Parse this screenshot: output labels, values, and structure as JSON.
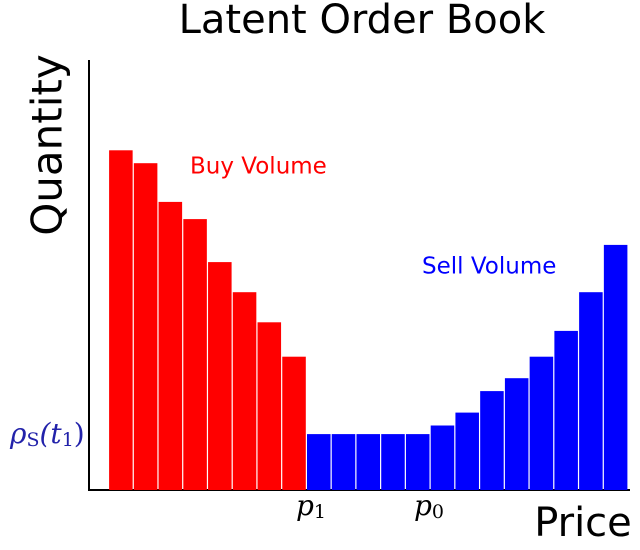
{
  "chart_data": {
    "type": "bar",
    "title": "Latent Order Book",
    "x_label": "Price",
    "y_label": "Quantity",
    "categories": [
      null,
      null,
      null,
      null,
      null,
      null,
      null,
      null,
      null,
      null,
      null,
      null,
      null,
      null,
      null,
      null,
      null,
      null,
      null,
      null,
      null
    ],
    "series": [
      {
        "name": "Buy Volume",
        "color": "#ff0000",
        "values": [
          79,
          76,
          67,
          63,
          53,
          46,
          39,
          31,
          null,
          null,
          null,
          null,
          null,
          null,
          null,
          null,
          null,
          null,
          null,
          null,
          null
        ]
      },
      {
        "name": "Sell Volume",
        "color": "#0000ff",
        "values": [
          null,
          null,
          null,
          null,
          null,
          null,
          null,
          null,
          13,
          13,
          13,
          13,
          13,
          15,
          18,
          23,
          26,
          31,
          37,
          46,
          57
        ]
      }
    ],
    "ylim": [
      0,
      100
    ],
    "annotations": [
      {
        "parts": [
          {
            "text": "ρ"
          },
          {
            "text": "S",
            "sub": true
          },
          {
            "text": "(t"
          },
          {
            "text": "1",
            "sub": true
          },
          {
            "text": ")"
          }
        ],
        "color": "#2222aa"
      },
      {
        "parts": [
          {
            "text": "p"
          },
          {
            "text": "1",
            "sub": true
          }
        ],
        "color": "#000000"
      },
      {
        "parts": [
          {
            "text": "p"
          },
          {
            "text": "0",
            "sub": true
          }
        ],
        "color": "#000000"
      }
    ]
  }
}
